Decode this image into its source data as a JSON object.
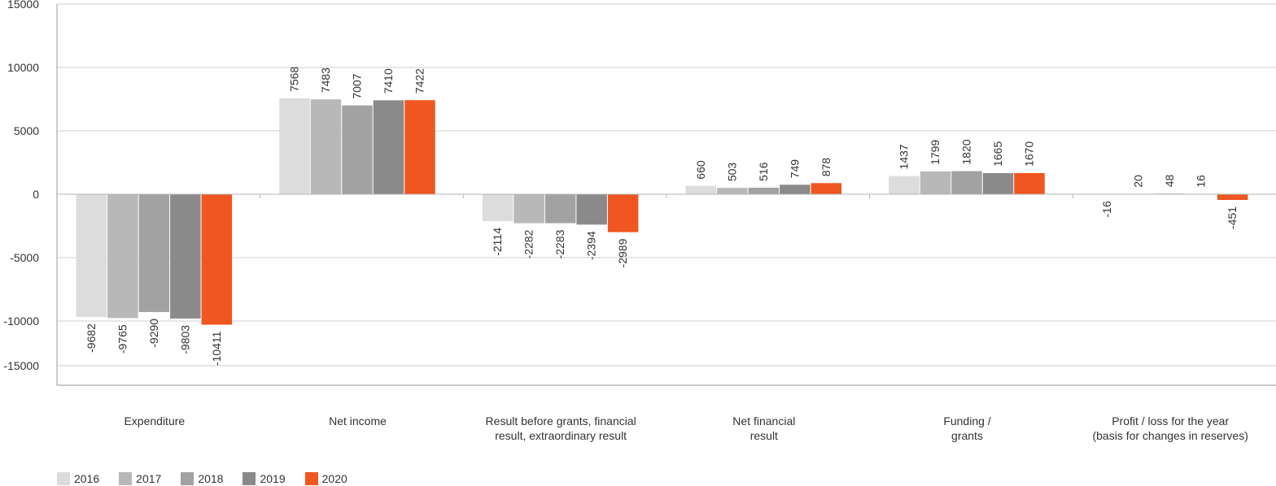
{
  "chart_data": {
    "type": "bar",
    "categories": [
      "Expenditure",
      "Net income",
      "Result before grants, financial result, extraordinary result",
      "Net financial result",
      "Funding / grants",
      "Profit / loss for the year (basis for changes in reserves)"
    ],
    "category_lines": [
      [
        "Expenditure"
      ],
      [
        "Net income"
      ],
      [
        "Result before grants, financial",
        "result, extraordinary result"
      ],
      [
        "Net financial",
        "result"
      ],
      [
        "Funding /",
        "grants"
      ],
      [
        "Profit / loss for the year",
        "(basis for changes in reserves)"
      ]
    ],
    "series": [
      {
        "name": "2016",
        "color": "#dcdcdc",
        "values": [
          -9682,
          7568,
          -2114,
          660,
          1437,
          -16
        ]
      },
      {
        "name": "2017",
        "color": "#b8b8b8",
        "values": [
          -9765,
          7483,
          -2282,
          503,
          1799,
          20
        ]
      },
      {
        "name": "2018",
        "color": "#a2a2a2",
        "values": [
          -9290,
          7007,
          -2283,
          516,
          1820,
          48
        ]
      },
      {
        "name": "2019",
        "color": "#8a8a8a",
        "values": [
          -9803,
          7410,
          -2394,
          749,
          1665,
          16
        ]
      },
      {
        "name": "2020",
        "color": "#f0561f",
        "values": [
          -10411,
          7422,
          -2989,
          878,
          1670,
          -451
        ]
      }
    ],
    "yticks": [
      15000,
      10000,
      5000,
      0,
      -5000,
      -10000,
      -15000
    ],
    "ylim": [
      -15000,
      15000
    ],
    "grid": true,
    "legend_position": "bottom-left"
  }
}
